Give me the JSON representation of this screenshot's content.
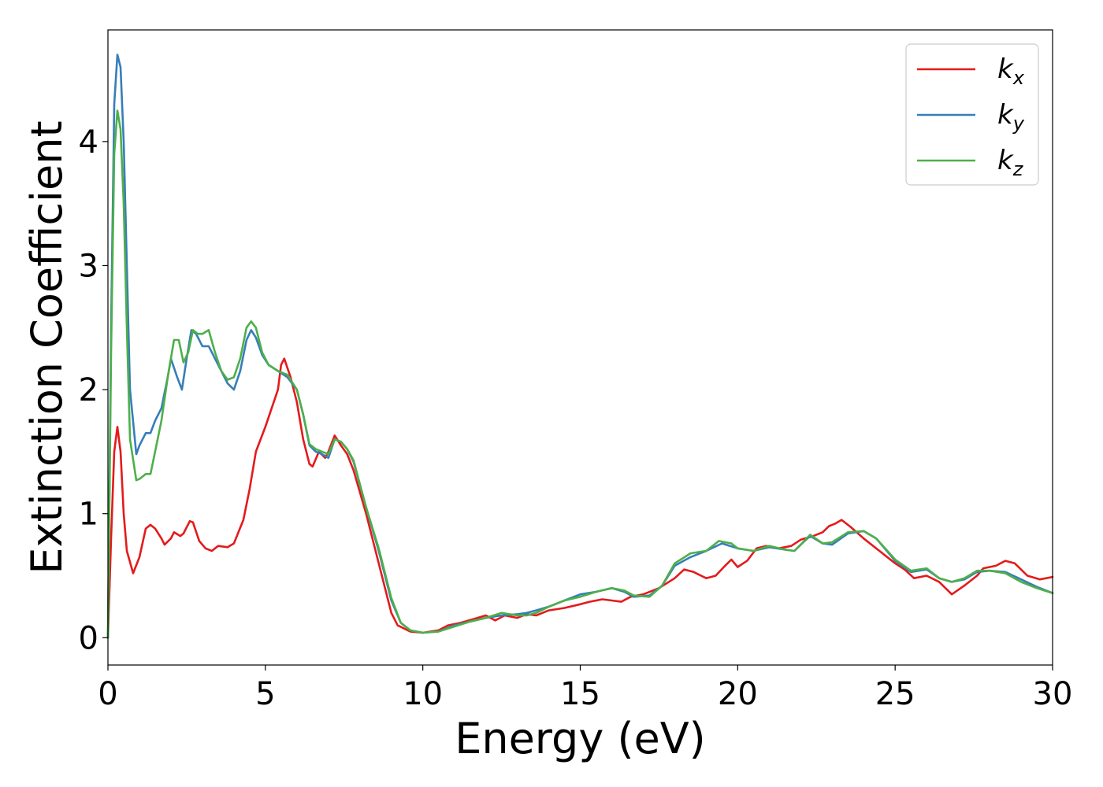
{
  "chart_data": {
    "type": "line",
    "xlabel": "Energy (eV)",
    "ylabel": "Extinction Coefficient",
    "xlim": [
      0,
      30
    ],
    "ylim": [
      -0.22,
      4.9
    ],
    "xticks": [
      0,
      5,
      10,
      15,
      20,
      25,
      30
    ],
    "yticks": [
      0,
      1,
      2,
      3,
      4
    ],
    "grid": false,
    "legend_position": "top-right",
    "series": [
      {
        "name": "k",
        "subscript": "x",
        "color": "#e41a1c",
        "points": [
          [
            0,
            0
          ],
          [
            0.1,
            0.8
          ],
          [
            0.2,
            1.5
          ],
          [
            0.3,
            1.7
          ],
          [
            0.4,
            1.5
          ],
          [
            0.5,
            1.0
          ],
          [
            0.6,
            0.7
          ],
          [
            0.8,
            0.52
          ],
          [
            1.0,
            0.65
          ],
          [
            1.2,
            0.88
          ],
          [
            1.35,
            0.91
          ],
          [
            1.5,
            0.88
          ],
          [
            1.7,
            0.8
          ],
          [
            1.8,
            0.75
          ],
          [
            2.0,
            0.8
          ],
          [
            2.1,
            0.85
          ],
          [
            2.3,
            0.82
          ],
          [
            2.4,
            0.84
          ],
          [
            2.6,
            0.94
          ],
          [
            2.7,
            0.93
          ],
          [
            2.9,
            0.78
          ],
          [
            3.1,
            0.72
          ],
          [
            3.3,
            0.7
          ],
          [
            3.5,
            0.74
          ],
          [
            3.8,
            0.73
          ],
          [
            4.0,
            0.76
          ],
          [
            4.3,
            0.95
          ],
          [
            4.5,
            1.2
          ],
          [
            4.7,
            1.5
          ],
          [
            5.0,
            1.7
          ],
          [
            5.2,
            1.85
          ],
          [
            5.4,
            2.0
          ],
          [
            5.5,
            2.2
          ],
          [
            5.6,
            2.25
          ],
          [
            5.8,
            2.1
          ],
          [
            6.0,
            1.9
          ],
          [
            6.2,
            1.6
          ],
          [
            6.4,
            1.4
          ],
          [
            6.5,
            1.38
          ],
          [
            6.7,
            1.5
          ],
          [
            6.9,
            1.45
          ],
          [
            7.0,
            1.5
          ],
          [
            7.2,
            1.63
          ],
          [
            7.4,
            1.55
          ],
          [
            7.6,
            1.48
          ],
          [
            7.8,
            1.35
          ],
          [
            8.2,
            1.0
          ],
          [
            8.6,
            0.6
          ],
          [
            9.0,
            0.2
          ],
          [
            9.2,
            0.1
          ],
          [
            9.6,
            0.05
          ],
          [
            10.0,
            0.04
          ],
          [
            10.5,
            0.06
          ],
          [
            10.8,
            0.1
          ],
          [
            11.2,
            0.12
          ],
          [
            11.6,
            0.15
          ],
          [
            12.0,
            0.18
          ],
          [
            12.3,
            0.14
          ],
          [
            12.6,
            0.18
          ],
          [
            13.0,
            0.16
          ],
          [
            13.3,
            0.19
          ],
          [
            13.6,
            0.18
          ],
          [
            14.0,
            0.22
          ],
          [
            14.5,
            0.24
          ],
          [
            15.0,
            0.27
          ],
          [
            15.3,
            0.29
          ],
          [
            15.7,
            0.31
          ],
          [
            16.0,
            0.3
          ],
          [
            16.3,
            0.29
          ],
          [
            16.6,
            0.33
          ],
          [
            17.0,
            0.35
          ],
          [
            17.5,
            0.4
          ],
          [
            18.0,
            0.48
          ],
          [
            18.3,
            0.55
          ],
          [
            18.6,
            0.53
          ],
          [
            19.0,
            0.48
          ],
          [
            19.3,
            0.5
          ],
          [
            19.6,
            0.58
          ],
          [
            19.8,
            0.63
          ],
          [
            20.0,
            0.57
          ],
          [
            20.3,
            0.62
          ],
          [
            20.6,
            0.72
          ],
          [
            20.9,
            0.74
          ],
          [
            21.3,
            0.72
          ],
          [
            21.7,
            0.74
          ],
          [
            22.0,
            0.79
          ],
          [
            22.4,
            0.82
          ],
          [
            22.7,
            0.85
          ],
          [
            22.9,
            0.9
          ],
          [
            23.1,
            0.92
          ],
          [
            23.3,
            0.95
          ],
          [
            23.6,
            0.89
          ],
          [
            24.0,
            0.8
          ],
          [
            24.5,
            0.7
          ],
          [
            25.0,
            0.6
          ],
          [
            25.3,
            0.55
          ],
          [
            25.6,
            0.48
          ],
          [
            26.0,
            0.5
          ],
          [
            26.4,
            0.45
          ],
          [
            26.8,
            0.35
          ],
          [
            27.2,
            0.42
          ],
          [
            27.6,
            0.5
          ],
          [
            27.8,
            0.56
          ],
          [
            28.2,
            0.58
          ],
          [
            28.5,
            0.62
          ],
          [
            28.8,
            0.6
          ],
          [
            29.2,
            0.5
          ],
          [
            29.6,
            0.47
          ],
          [
            30.0,
            0.49
          ]
        ]
      },
      {
        "name": "k",
        "subscript": "y",
        "color": "#377eb8",
        "points": [
          [
            0,
            0
          ],
          [
            0.1,
            2.5
          ],
          [
            0.2,
            4.3
          ],
          [
            0.3,
            4.7
          ],
          [
            0.4,
            4.6
          ],
          [
            0.5,
            4.0
          ],
          [
            0.6,
            3.0
          ],
          [
            0.7,
            2.0
          ],
          [
            0.9,
            1.48
          ],
          [
            1.0,
            1.55
          ],
          [
            1.2,
            1.65
          ],
          [
            1.35,
            1.65
          ],
          [
            1.5,
            1.75
          ],
          [
            1.7,
            1.85
          ],
          [
            1.9,
            2.1
          ],
          [
            2.0,
            2.25
          ],
          [
            2.2,
            2.1
          ],
          [
            2.35,
            2.0
          ],
          [
            2.5,
            2.25
          ],
          [
            2.65,
            2.48
          ],
          [
            2.8,
            2.45
          ],
          [
            3.0,
            2.35
          ],
          [
            3.2,
            2.35
          ],
          [
            3.4,
            2.25
          ],
          [
            3.6,
            2.15
          ],
          [
            3.8,
            2.05
          ],
          [
            4.0,
            2.0
          ],
          [
            4.2,
            2.15
          ],
          [
            4.4,
            2.4
          ],
          [
            4.55,
            2.48
          ],
          [
            4.7,
            2.42
          ],
          [
            4.9,
            2.28
          ],
          [
            5.1,
            2.2
          ],
          [
            5.4,
            2.15
          ],
          [
            5.7,
            2.1
          ],
          [
            6.0,
            2.0
          ],
          [
            6.2,
            1.8
          ],
          [
            6.4,
            1.55
          ],
          [
            6.6,
            1.5
          ],
          [
            6.8,
            1.48
          ],
          [
            7.0,
            1.45
          ],
          [
            7.2,
            1.6
          ],
          [
            7.4,
            1.58
          ],
          [
            7.6,
            1.52
          ],
          [
            7.8,
            1.42
          ],
          [
            8.2,
            1.05
          ],
          [
            8.6,
            0.7
          ],
          [
            9.0,
            0.3
          ],
          [
            9.3,
            0.12
          ],
          [
            9.6,
            0.06
          ],
          [
            10.0,
            0.04
          ],
          [
            10.5,
            0.05
          ],
          [
            11.0,
            0.1
          ],
          [
            11.5,
            0.13
          ],
          [
            12.0,
            0.16
          ],
          [
            12.5,
            0.18
          ],
          [
            13.0,
            0.19
          ],
          [
            13.3,
            0.2
          ],
          [
            13.6,
            0.22
          ],
          [
            14.0,
            0.25
          ],
          [
            14.5,
            0.3
          ],
          [
            15.0,
            0.35
          ],
          [
            15.5,
            0.37
          ],
          [
            16.0,
            0.4
          ],
          [
            16.4,
            0.37
          ],
          [
            16.7,
            0.33
          ],
          [
            17.2,
            0.34
          ],
          [
            17.6,
            0.42
          ],
          [
            18.0,
            0.58
          ],
          [
            18.5,
            0.65
          ],
          [
            19.0,
            0.7
          ],
          [
            19.5,
            0.76
          ],
          [
            20.0,
            0.72
          ],
          [
            20.5,
            0.7
          ],
          [
            21.0,
            0.73
          ],
          [
            21.5,
            0.71
          ],
          [
            21.8,
            0.7
          ],
          [
            22.0,
            0.75
          ],
          [
            22.3,
            0.82
          ],
          [
            22.7,
            0.76
          ],
          [
            23.0,
            0.75
          ],
          [
            23.5,
            0.84
          ],
          [
            24.0,
            0.86
          ],
          [
            24.4,
            0.8
          ],
          [
            25.0,
            0.62
          ],
          [
            25.5,
            0.53
          ],
          [
            26.0,
            0.55
          ],
          [
            26.4,
            0.48
          ],
          [
            26.8,
            0.45
          ],
          [
            27.2,
            0.47
          ],
          [
            27.6,
            0.53
          ],
          [
            28.0,
            0.54
          ],
          [
            28.5,
            0.53
          ],
          [
            29.0,
            0.47
          ],
          [
            29.5,
            0.41
          ],
          [
            30.0,
            0.36
          ]
        ]
      },
      {
        "name": "k",
        "subscript": "z",
        "color": "#4daf4a",
        "points": [
          [
            0,
            0
          ],
          [
            0.1,
            2.3
          ],
          [
            0.2,
            3.9
          ],
          [
            0.3,
            4.25
          ],
          [
            0.4,
            4.1
          ],
          [
            0.5,
            3.5
          ],
          [
            0.6,
            2.5
          ],
          [
            0.7,
            1.6
          ],
          [
            0.9,
            1.27
          ],
          [
            1.0,
            1.28
          ],
          [
            1.2,
            1.32
          ],
          [
            1.35,
            1.32
          ],
          [
            1.5,
            1.5
          ],
          [
            1.7,
            1.75
          ],
          [
            1.9,
            2.1
          ],
          [
            2.1,
            2.4
          ],
          [
            2.25,
            2.4
          ],
          [
            2.4,
            2.22
          ],
          [
            2.55,
            2.3
          ],
          [
            2.7,
            2.48
          ],
          [
            2.85,
            2.45
          ],
          [
            3.0,
            2.45
          ],
          [
            3.2,
            2.48
          ],
          [
            3.4,
            2.3
          ],
          [
            3.6,
            2.15
          ],
          [
            3.8,
            2.08
          ],
          [
            4.0,
            2.1
          ],
          [
            4.2,
            2.25
          ],
          [
            4.4,
            2.5
          ],
          [
            4.55,
            2.55
          ],
          [
            4.7,
            2.5
          ],
          [
            4.9,
            2.3
          ],
          [
            5.1,
            2.2
          ],
          [
            5.4,
            2.15
          ],
          [
            5.7,
            2.12
          ],
          [
            6.0,
            2.0
          ],
          [
            6.2,
            1.8
          ],
          [
            6.4,
            1.56
          ],
          [
            6.6,
            1.52
          ],
          [
            6.8,
            1.5
          ],
          [
            7.0,
            1.48
          ],
          [
            7.2,
            1.6
          ],
          [
            7.4,
            1.58
          ],
          [
            7.6,
            1.52
          ],
          [
            7.8,
            1.43
          ],
          [
            8.2,
            1.05
          ],
          [
            8.6,
            0.72
          ],
          [
            9.0,
            0.32
          ],
          [
            9.3,
            0.12
          ],
          [
            9.6,
            0.06
          ],
          [
            10.0,
            0.04
          ],
          [
            10.5,
            0.05
          ],
          [
            11.0,
            0.09
          ],
          [
            11.5,
            0.13
          ],
          [
            12.0,
            0.16
          ],
          [
            12.5,
            0.2
          ],
          [
            13.0,
            0.18
          ],
          [
            13.3,
            0.18
          ],
          [
            13.6,
            0.2
          ],
          [
            14.0,
            0.25
          ],
          [
            14.5,
            0.3
          ],
          [
            15.0,
            0.33
          ],
          [
            15.5,
            0.37
          ],
          [
            16.0,
            0.4
          ],
          [
            16.4,
            0.38
          ],
          [
            16.7,
            0.34
          ],
          [
            17.2,
            0.33
          ],
          [
            17.6,
            0.42
          ],
          [
            18.0,
            0.6
          ],
          [
            18.5,
            0.68
          ],
          [
            19.0,
            0.7
          ],
          [
            19.4,
            0.78
          ],
          [
            19.8,
            0.76
          ],
          [
            20.0,
            0.72
          ],
          [
            20.5,
            0.7
          ],
          [
            21.0,
            0.74
          ],
          [
            21.5,
            0.71
          ],
          [
            21.8,
            0.7
          ],
          [
            22.0,
            0.75
          ],
          [
            22.3,
            0.83
          ],
          [
            22.7,
            0.76
          ],
          [
            23.0,
            0.77
          ],
          [
            23.5,
            0.85
          ],
          [
            24.0,
            0.86
          ],
          [
            24.4,
            0.8
          ],
          [
            25.0,
            0.63
          ],
          [
            25.5,
            0.54
          ],
          [
            26.0,
            0.56
          ],
          [
            26.4,
            0.48
          ],
          [
            26.8,
            0.45
          ],
          [
            27.2,
            0.48
          ],
          [
            27.6,
            0.54
          ],
          [
            28.0,
            0.54
          ],
          [
            28.5,
            0.52
          ],
          [
            29.0,
            0.45
          ],
          [
            29.5,
            0.4
          ],
          [
            30.0,
            0.36
          ]
        ]
      }
    ]
  }
}
